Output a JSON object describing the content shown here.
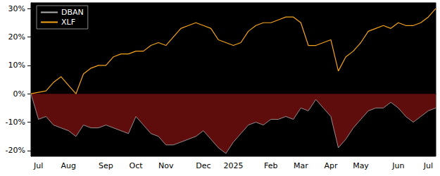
{
  "chart_data": {
    "type": "line",
    "categories": [
      null,
      "Jul",
      null,
      null,
      null,
      "Aug",
      null,
      null,
      null,
      null,
      "Sep",
      null,
      null,
      null,
      "Oct",
      null,
      null,
      null,
      "Nov",
      null,
      null,
      null,
      null,
      "Dec",
      null,
      null,
      null,
      "2025",
      null,
      null,
      null,
      null,
      "Feb",
      null,
      null,
      null,
      "Mar",
      null,
      null,
      null,
      "Apr",
      null,
      null,
      null,
      "May",
      null,
      null,
      null,
      null,
      "Jun",
      null,
      null,
      null,
      "Jul",
      null
    ],
    "series": [
      {
        "name": "DBAN",
        "color": "#b0b0b0",
        "type": "area",
        "values": [
          0,
          -9,
          -8,
          -11,
          -12,
          -13,
          -15,
          -11,
          -12,
          -12,
          -11,
          -12,
          -13,
          -14,
          -8,
          -11,
          -14,
          -15,
          -18,
          -18,
          -17,
          -16,
          -15,
          -13,
          -16,
          -19,
          -21,
          -17,
          -14,
          -11,
          -10,
          -11,
          -9,
          -9,
          -8,
          -9,
          -5,
          -6,
          -2,
          -5,
          -8,
          -19,
          -16,
          -12,
          -9,
          -6,
          -5,
          -5,
          -3,
          -5,
          -8,
          -10,
          -8,
          -6,
          -5
        ]
      },
      {
        "name": "XLF",
        "color": "#f5a31a",
        "type": "line",
        "values": [
          0,
          0.5,
          1,
          4,
          6,
          3,
          0,
          7,
          9,
          10,
          10,
          13,
          14,
          14,
          15,
          15,
          17,
          18,
          17,
          20,
          23,
          24,
          25,
          24,
          23,
          19,
          18,
          17,
          18,
          22,
          24,
          25,
          25,
          26,
          27,
          27,
          25,
          17,
          17,
          18,
          19,
          8,
          13,
          15,
          18,
          22,
          23,
          24,
          23,
          25,
          24,
          24,
          25,
          27,
          30
        ]
      }
    ],
    "ylim": [
      -22,
      32
    ],
    "yticks": [
      {
        "value": -20,
        "label": "-20%"
      },
      {
        "value": -10,
        "label": "-10%"
      },
      {
        "value": 0,
        "label": "0%"
      },
      {
        "value": 10,
        "label": "10%"
      },
      {
        "value": 20,
        "label": "20%"
      },
      {
        "value": 30,
        "label": "30%"
      }
    ],
    "grid": false,
    "legend": "upper left"
  }
}
